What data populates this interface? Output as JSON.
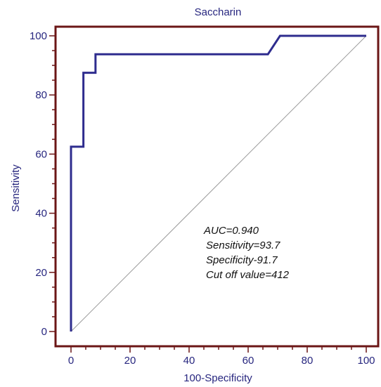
{
  "chart_data": {
    "type": "line",
    "title": "Saccharin",
    "xlabel": "100-Specificity",
    "ylabel": "Sensitivity",
    "xlim": [
      0,
      100
    ],
    "ylim": [
      0,
      100
    ],
    "x_ticks": [
      0,
      20,
      40,
      60,
      80,
      100
    ],
    "y_ticks": [
      0,
      20,
      40,
      60,
      80,
      100
    ],
    "grid": false,
    "series": [
      {
        "x": [
          0,
          0,
          4.2,
          4.2,
          8.3,
          8.3,
          66.7,
          70.8,
          100
        ],
        "y": [
          0,
          62.5,
          62.5,
          87.5,
          87.5,
          93.75,
          93.75,
          100,
          100
        ],
        "color": "#2e2c8e"
      }
    ],
    "reference_line": {
      "x": [
        0,
        100
      ],
      "y": [
        0,
        100
      ],
      "color": "#9a9a9a"
    },
    "annotations": [
      "AUC=0.940",
      "Sensitivity=93.7",
      "Specificity-91.7",
      "Cut off value=412"
    ],
    "colors": {
      "frame": "#6b1616",
      "text": "#27267f"
    }
  }
}
